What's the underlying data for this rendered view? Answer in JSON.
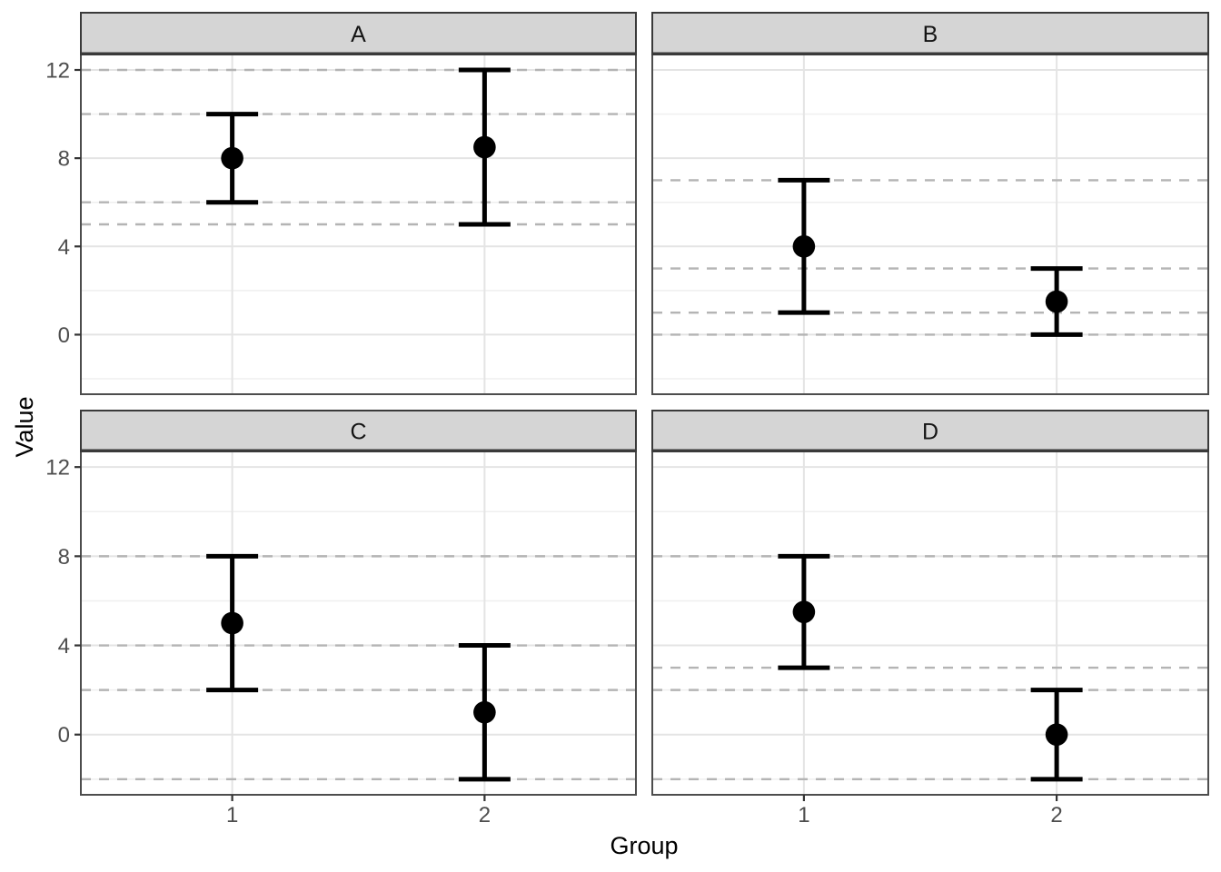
{
  "chart_data": {
    "type": "scatter",
    "subtype": "faceted-pointrange",
    "title": "",
    "xlabel": "Group",
    "ylabel": "Value",
    "x_categories": [
      "1",
      "2"
    ],
    "y_ticks": [
      0,
      4,
      8,
      12
    ],
    "y_minor_ticks": [
      -2,
      2,
      6,
      10
    ],
    "ylim": [
      -2.7,
      12.7
    ],
    "grid": "horizontal major+minor, vertical major at categories",
    "legend": "none",
    "facet_layout": "2x2",
    "facets": [
      {
        "label": "A",
        "points": [
          {
            "x": "1",
            "y": 8,
            "ymin": 6,
            "ymax": 10
          },
          {
            "x": "2",
            "y": 8.5,
            "ymin": 5,
            "ymax": 12
          }
        ],
        "dashed_hlines": [
          6,
          10,
          5,
          12
        ]
      },
      {
        "label": "B",
        "points": [
          {
            "x": "1",
            "y": 4,
            "ymin": 1,
            "ymax": 7
          },
          {
            "x": "2",
            "y": 1.5,
            "ymin": 0,
            "ymax": 3
          }
        ],
        "dashed_hlines": [
          1,
          7,
          0,
          3
        ]
      },
      {
        "label": "C",
        "points": [
          {
            "x": "1",
            "y": 5,
            "ymin": 2,
            "ymax": 8
          },
          {
            "x": "2",
            "y": 1,
            "ymin": -2,
            "ymax": 4
          }
        ],
        "dashed_hlines": [
          2,
          8,
          -2,
          4
        ]
      },
      {
        "label": "D",
        "points": [
          {
            "x": "1",
            "y": 5.5,
            "ymin": 3,
            "ymax": 8
          },
          {
            "x": "2",
            "y": 0,
            "ymin": -2,
            "ymax": 2
          }
        ],
        "dashed_hlines": [
          3,
          8,
          -2,
          2
        ]
      }
    ],
    "style": {
      "point_color": "#000000",
      "errorbar_color": "#000000",
      "dashed_line_color": "#B4B4B4",
      "major_grid_color": "#E4E4E4",
      "minor_grid_color": "#EFEFEF",
      "panel_border_color": "#4D4D4D",
      "panel_fill": "#FFFFFF",
      "strip_fill": "#D5D5D5",
      "strip_border_color": "#3A3A3A",
      "tick_mark_color": "#333333",
      "tick_label_color": "#4D4D4D",
      "axis_title_color": "#000000",
      "strip_text_color": "#141414"
    }
  }
}
